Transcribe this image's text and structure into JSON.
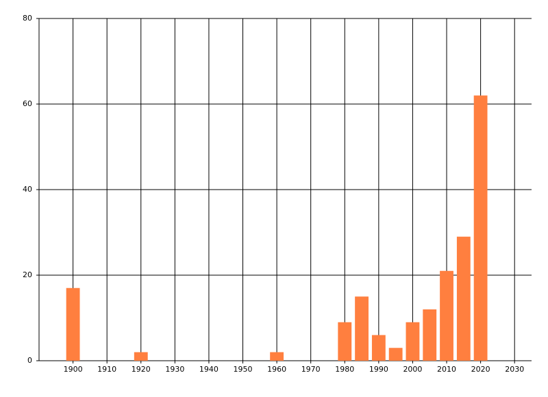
{
  "chart_data": {
    "type": "bar",
    "x": [
      1900,
      1920,
      1960,
      1980,
      1985,
      1990,
      1995,
      2000,
      2005,
      2010,
      2015,
      2020
    ],
    "values": [
      17,
      2,
      2,
      9,
      15,
      6,
      3,
      9,
      12,
      21,
      29,
      62
    ],
    "color": "#ff7f3f",
    "xlim": [
      1890,
      2035
    ],
    "xticks": [
      1900,
      1910,
      1920,
      1930,
      1940,
      1950,
      1960,
      1970,
      1980,
      1990,
      2000,
      2010,
      2020,
      2030
    ],
    "ylim": [
      0,
      80
    ],
    "yticks": [
      0,
      20,
      40,
      60,
      80
    ],
    "grid": true
  }
}
